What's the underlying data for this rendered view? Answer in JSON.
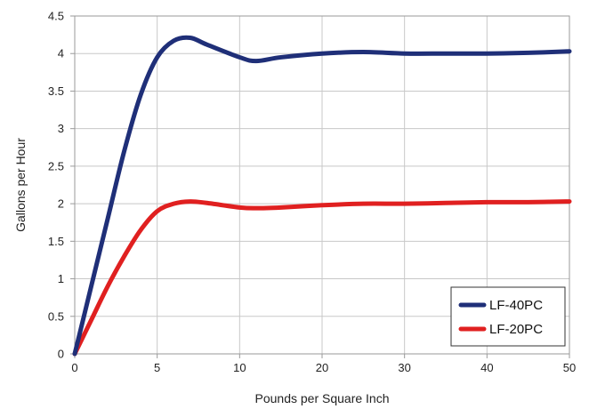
{
  "chart_data": {
    "type": "line",
    "title": "",
    "xlabel": "Pounds per Square Inch",
    "ylabel": "Gallons per Hour",
    "x_tick_labels": [
      "0",
      "5",
      "10",
      "20",
      "30",
      "40",
      "50"
    ],
    "y_ticks": [
      0,
      0.5,
      1,
      1.5,
      2,
      2.5,
      3,
      3.5,
      4,
      4.5
    ],
    "y_tick_labels": [
      "0",
      "0.5",
      "1",
      "1.5",
      "2",
      "2.5",
      "3",
      "3.5",
      "4",
      "4.5"
    ],
    "ylim": [
      0,
      4.5
    ],
    "grid": true,
    "legend_position": "bottom-right",
    "x_axis_note": "categorical-style axis: ticks 0,5,10,20,30,40,50 are evenly spaced",
    "series": [
      {
        "name": "LF-40PC",
        "color": "#1f2f78",
        "points": [
          [
            0,
            0
          ],
          [
            1,
            0.9
          ],
          [
            2,
            1.8
          ],
          [
            3,
            2.7
          ],
          [
            4,
            3.45
          ],
          [
            5,
            3.95
          ],
          [
            6,
            4.17
          ],
          [
            7,
            4.21
          ],
          [
            8,
            4.12
          ],
          [
            10,
            3.95
          ],
          [
            12,
            3.9
          ],
          [
            15,
            3.95
          ],
          [
            20,
            4.0
          ],
          [
            25,
            4.02
          ],
          [
            30,
            4.0
          ],
          [
            35,
            4.0
          ],
          [
            40,
            4.0
          ],
          [
            45,
            4.01
          ],
          [
            50,
            4.03
          ]
        ]
      },
      {
        "name": "LF-20PC",
        "color": "#e02020",
        "points": [
          [
            0,
            0
          ],
          [
            1,
            0.45
          ],
          [
            2,
            0.9
          ],
          [
            3,
            1.3
          ],
          [
            4,
            1.65
          ],
          [
            5,
            1.9
          ],
          [
            6,
            2.0
          ],
          [
            7,
            2.03
          ],
          [
            8,
            2.01
          ],
          [
            10,
            1.95
          ],
          [
            12,
            1.94
          ],
          [
            15,
            1.95
          ],
          [
            20,
            1.98
          ],
          [
            25,
            2.0
          ],
          [
            30,
            2.0
          ],
          [
            35,
            2.01
          ],
          [
            40,
            2.02
          ],
          [
            45,
            2.02
          ],
          [
            50,
            2.03
          ]
        ]
      }
    ]
  }
}
